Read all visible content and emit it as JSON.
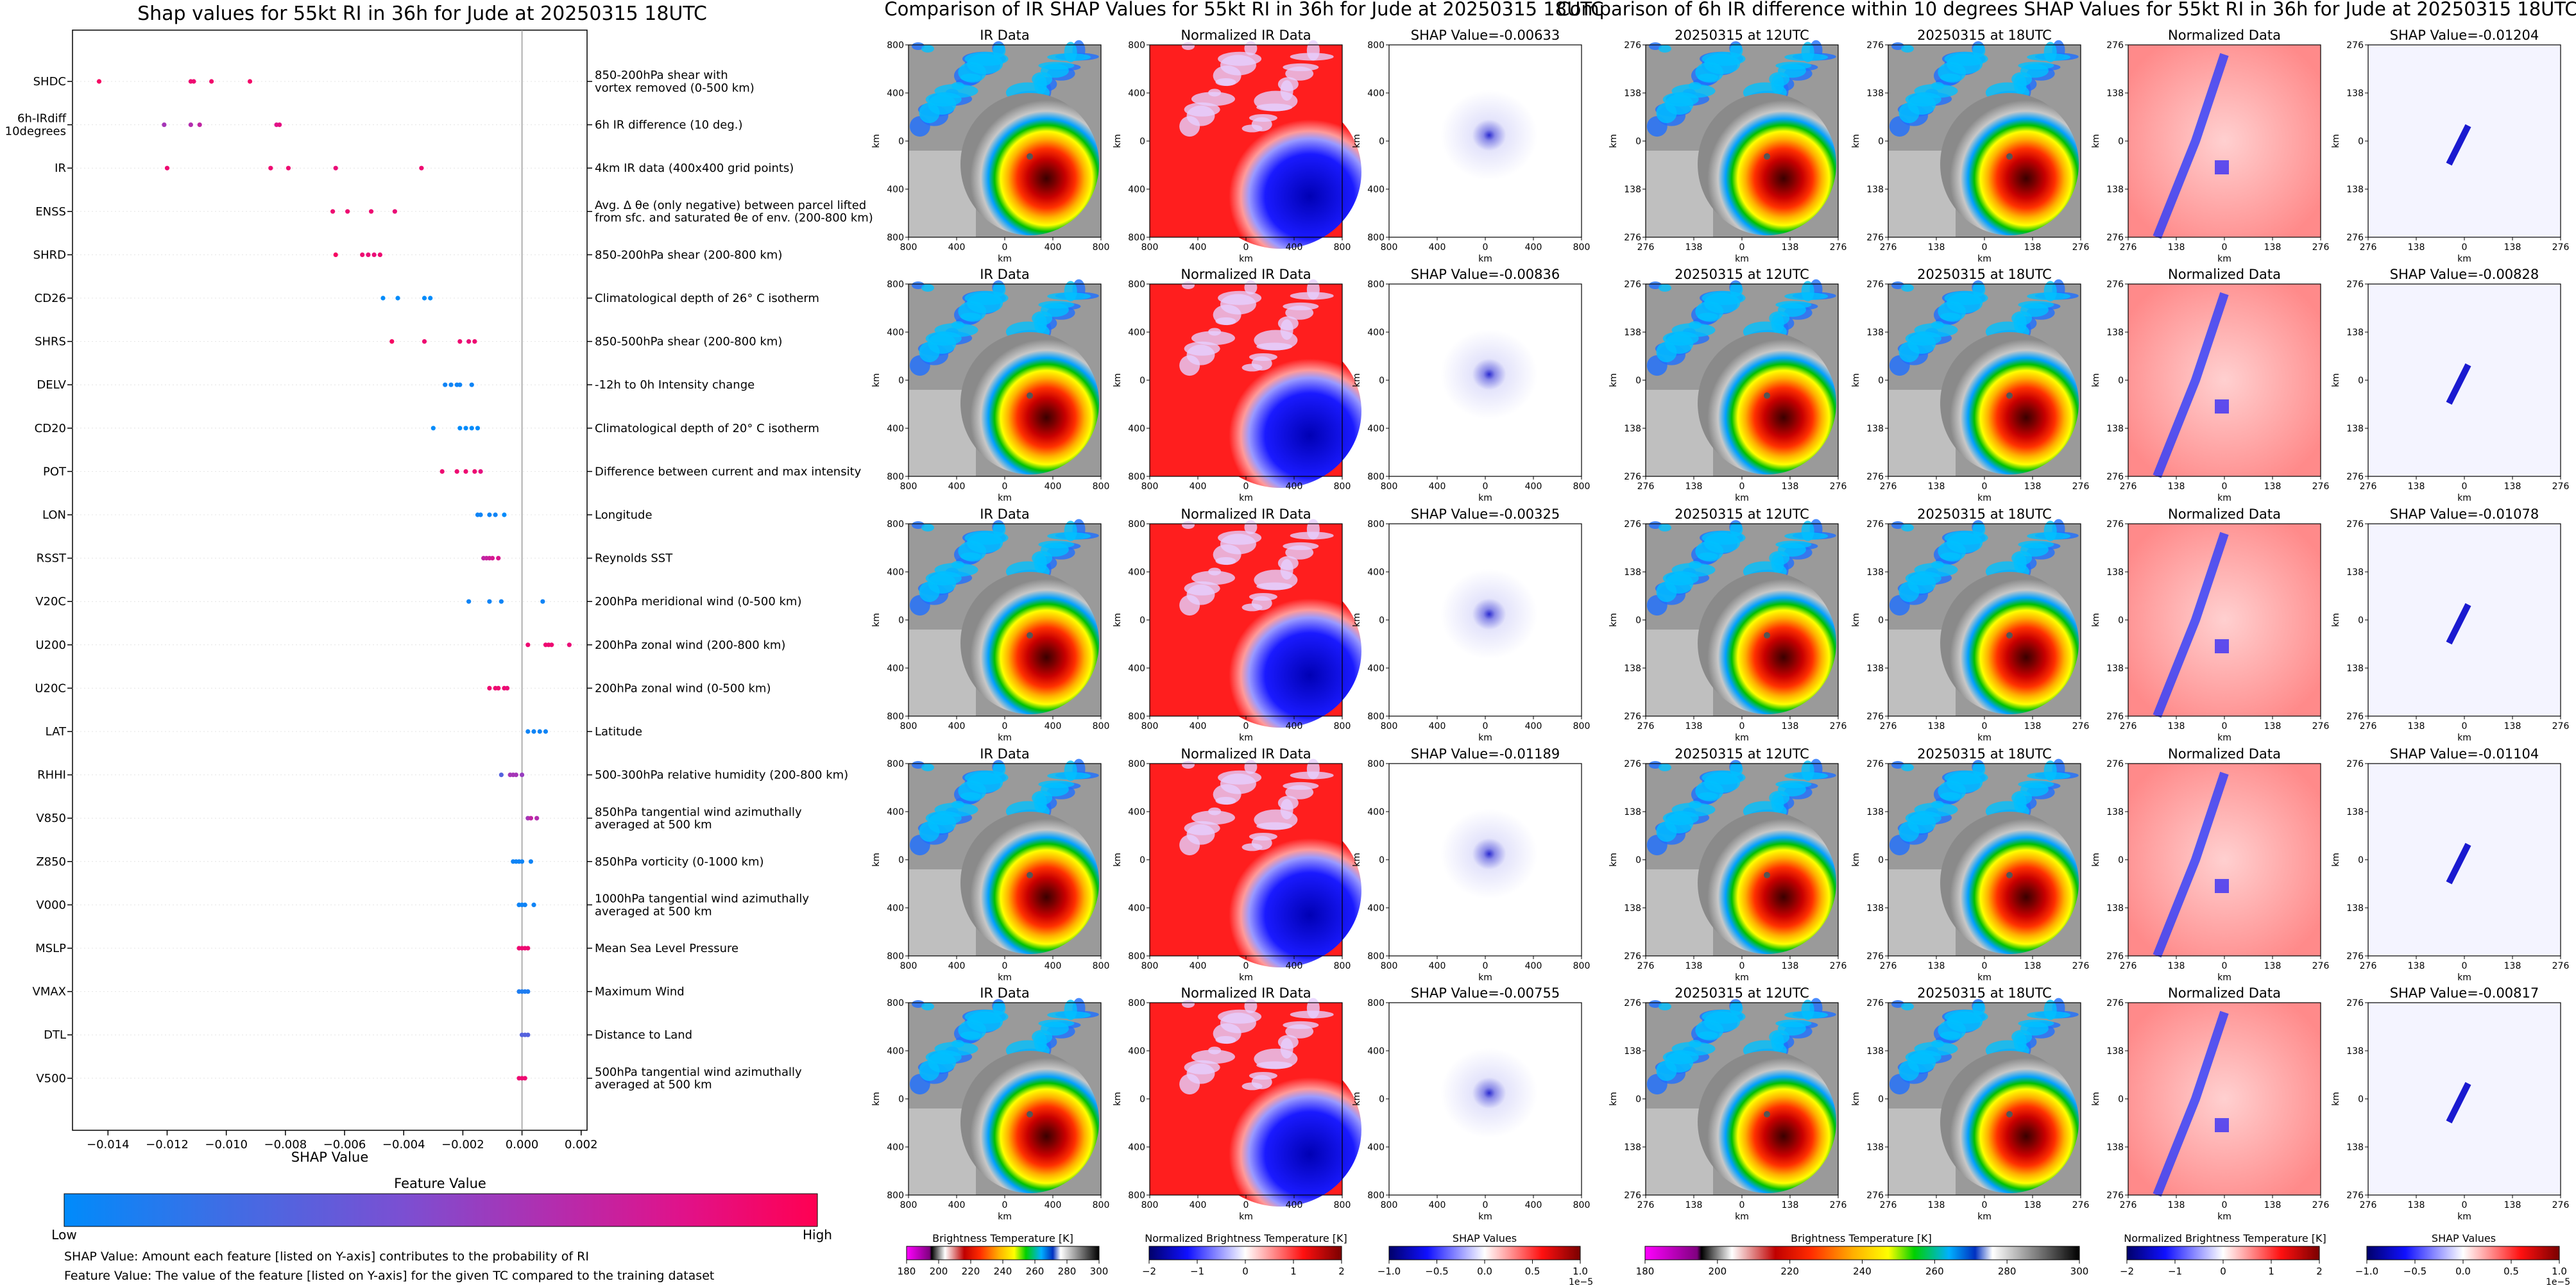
{
  "left": {
    "title": "Shap values for 55kt RI in 36h for Jude at 20250315 18UTC",
    "xlabel": "SHAP Value",
    "xticks": [
      "-0.014",
      "-0.012",
      "-0.010",
      "-0.008",
      "-0.006",
      "-0.004",
      "-0.002",
      "0.000",
      "0.002"
    ],
    "cbar_title": "Feature Value",
    "cbar_low": "Low",
    "cbar_high": "High",
    "note1": "SHAP Value: Amount each feature [listed on Y-axis] contributes to the probability of RI",
    "note2": "Feature Value: The value of the feature [listed on Y-axis] for the given TC compared to the training dataset"
  },
  "colors": {
    "low": "#1e88e5",
    "high": "#ff0052",
    "cmap": [
      "#008bfb",
      "#3b6fe6",
      "#7b4fd2",
      "#b32dae",
      "#e0128a",
      "#ff0052"
    ]
  },
  "chart_data": [
    {
      "type": "scatter",
      "title": "Shap values for 55kt RI in 36h for Jude at 20250315 18UTC",
      "xlabel": "SHAP Value",
      "xlim": [
        -0.0152,
        0.0022
      ],
      "grid": false,
      "series": [
        {
          "feature": "SHDC",
          "desc": "850-200hPa shear with\nvortex removed (0-500 km)",
          "points": [
            [
              -0.0143,
              0.95
            ],
            [
              -0.0112,
              0.9
            ],
            [
              -0.0111,
              0.9
            ],
            [
              -0.0105,
              0.92
            ],
            [
              -0.0092,
              0.93
            ]
          ]
        },
        {
          "feature": "6h-IRdiff\n10degrees",
          "desc": "6h IR difference (10 deg.)",
          "points": [
            [
              -0.0121,
              0.6
            ],
            [
              -0.0112,
              0.65
            ],
            [
              -0.0109,
              0.7
            ],
            [
              -0.0083,
              0.82
            ],
            [
              -0.0082,
              0.85
            ]
          ]
        },
        {
          "feature": "IR",
          "desc": "4km IR data (400x400 grid points)",
          "points": [
            [
              -0.012,
              0.9
            ],
            [
              -0.0085,
              0.9
            ],
            [
              -0.0079,
              0.9
            ],
            [
              -0.0063,
              0.88
            ],
            [
              -0.0034,
              0.9
            ]
          ]
        },
        {
          "feature": "ENSS",
          "desc": "Avg. Δ θe (only negative) between parcel lifted\nfrom sfc. and saturated θe of env. (200-800 km)",
          "points": [
            [
              -0.0064,
              0.9
            ],
            [
              -0.0059,
              0.9
            ],
            [
              -0.0051,
              0.9
            ],
            [
              -0.0043,
              0.88
            ]
          ]
        },
        {
          "feature": "SHRD",
          "desc": "850-200hPa shear (200-800 km)",
          "points": [
            [
              -0.0063,
              0.95
            ],
            [
              -0.0054,
              0.9
            ],
            [
              -0.0052,
              0.88
            ],
            [
              -0.005,
              0.88
            ],
            [
              -0.0048,
              0.9
            ]
          ]
        },
        {
          "feature": "CD26",
          "desc": "Climatological depth of 26° C isotherm",
          "points": [
            [
              -0.0047,
              0.0
            ],
            [
              -0.0042,
              0.0
            ],
            [
              -0.0033,
              0.0
            ],
            [
              -0.0031,
              0.0
            ]
          ]
        },
        {
          "feature": "SHRS",
          "desc": "850-500hPa shear (200-800 km)",
          "points": [
            [
              -0.0044,
              0.95
            ],
            [
              -0.0033,
              0.9
            ],
            [
              -0.0021,
              0.9
            ],
            [
              -0.0018,
              0.88
            ],
            [
              -0.0016,
              0.9
            ]
          ]
        },
        {
          "feature": "DELV",
          "desc": "-12h to 0h Intensity change",
          "points": [
            [
              -0.0026,
              0.05
            ],
            [
              -0.0024,
              0.05
            ],
            [
              -0.0022,
              0.05
            ],
            [
              -0.0021,
              0.05
            ],
            [
              -0.0017,
              0.05
            ]
          ]
        },
        {
          "feature": "CD20",
          "desc": "Climatological depth of 20° C isotherm",
          "points": [
            [
              -0.003,
              0.0
            ],
            [
              -0.0021,
              0.0
            ],
            [
              -0.0019,
              0.0
            ],
            [
              -0.0017,
              0.0
            ],
            [
              -0.0015,
              0.0
            ]
          ]
        },
        {
          "feature": "POT",
          "desc": "Difference between current and max intensity",
          "points": [
            [
              -0.0027,
              0.9
            ],
            [
              -0.0022,
              0.9
            ],
            [
              -0.0019,
              0.9
            ],
            [
              -0.0016,
              0.9
            ],
            [
              -0.0014,
              0.85
            ]
          ]
        },
        {
          "feature": "LON",
          "desc": "Longitude",
          "points": [
            [
              -0.0015,
              0.05
            ],
            [
              -0.0014,
              0.05
            ],
            [
              -0.0011,
              0.05
            ],
            [
              -0.0009,
              0.05
            ],
            [
              -0.0006,
              0.0
            ]
          ]
        },
        {
          "feature": "RSST",
          "desc": "Reynolds SST",
          "points": [
            [
              -0.0013,
              0.7
            ],
            [
              -0.0012,
              0.72
            ],
            [
              -0.0011,
              0.75
            ],
            [
              -0.001,
              0.78
            ],
            [
              -0.0008,
              0.8
            ]
          ]
        },
        {
          "feature": "V20C",
          "desc": "200hPa meridional wind (0-500 km)",
          "points": [
            [
              -0.0018,
              0.05
            ],
            [
              -0.0011,
              0.05
            ],
            [
              -0.0007,
              0.05
            ],
            [
              0.0007,
              0.05
            ]
          ]
        },
        {
          "feature": "U200",
          "desc": "200hPa zonal wind (200-800 km)",
          "points": [
            [
              0.0002,
              0.9
            ],
            [
              0.0008,
              0.9
            ],
            [
              0.0009,
              0.9
            ],
            [
              0.001,
              0.9
            ],
            [
              0.0016,
              0.88
            ]
          ]
        },
        {
          "feature": "U20C",
          "desc": "200hPa zonal wind (0-500 km)",
          "points": [
            [
              -0.0011,
              0.9
            ],
            [
              -0.0009,
              0.9
            ],
            [
              -0.0008,
              0.9
            ],
            [
              -0.0006,
              0.9
            ],
            [
              -0.0005,
              0.88
            ]
          ]
        },
        {
          "feature": "LAT",
          "desc": "Latitude",
          "points": [
            [
              0.0002,
              0.05
            ],
            [
              0.0004,
              0.05
            ],
            [
              0.0006,
              0.05
            ],
            [
              0.0008,
              0.05
            ]
          ]
        },
        {
          "feature": "RHHI",
          "desc": "500-300hPa relative humidity (200-800 km)",
          "points": [
            [
              -0.0007,
              0.3
            ],
            [
              -0.0004,
              0.6
            ],
            [
              -0.0003,
              0.6
            ],
            [
              -0.0002,
              0.6
            ],
            [
              0.0,
              0.55
            ]
          ]
        },
        {
          "feature": "V850",
          "desc": "850hPa tangential wind azimuthally\naveraged at 500 km",
          "points": [
            [
              0.0002,
              0.6
            ],
            [
              0.0003,
              0.7
            ],
            [
              0.0005,
              0.65
            ]
          ]
        },
        {
          "feature": "Z850",
          "desc": "850hPa vorticity (0-1000 km)",
          "points": [
            [
              -0.0003,
              0.05
            ],
            [
              -0.0002,
              0.05
            ],
            [
              -0.0001,
              0.05
            ],
            [
              0.0,
              0.05
            ],
            [
              0.0003,
              0.05
            ]
          ]
        },
        {
          "feature": "V000",
          "desc": "1000hPa tangential wind azimuthally\naveraged at 500 km",
          "points": [
            [
              -0.0001,
              0.05
            ],
            [
              0.0,
              0.05
            ],
            [
              0.0001,
              0.05
            ],
            [
              0.0004,
              0.05
            ]
          ]
        },
        {
          "feature": "MSLP",
          "desc": "Mean Sea Level Pressure",
          "points": [
            [
              -0.0001,
              0.9
            ],
            [
              0.0,
              0.9
            ],
            [
              0.0001,
              0.9
            ],
            [
              0.0002,
              0.9
            ]
          ]
        },
        {
          "feature": "VMAX",
          "desc": "Maximum Wind",
          "points": [
            [
              -0.0001,
              0.1
            ],
            [
              0.0,
              0.1
            ],
            [
              0.0001,
              0.1
            ],
            [
              0.0002,
              0.1
            ]
          ]
        },
        {
          "feature": "DTL",
          "desc": "Distance to Land",
          "points": [
            [
              0.0,
              0.3
            ],
            [
              0.0001,
              0.3
            ],
            [
              0.0002,
              0.3
            ]
          ]
        },
        {
          "feature": "V500",
          "desc": "500hPa tangential wind azimuthally\naveraged at 500 km",
          "points": [
            [
              -0.0001,
              0.9
            ],
            [
              0.0,
              0.9
            ],
            [
              0.0001,
              0.9
            ]
          ]
        }
      ]
    },
    {
      "type": "heatmap",
      "title": "Comparison of IR SHAP Values for 55kt RI in 36h for Jude at 20250315 18UTC",
      "columns": [
        "IR Data",
        "Normalized IR Data",
        "SHAP"
      ],
      "shap_values": [
        "-0.00633",
        "-0.00836",
        "-0.00325",
        "-0.01189",
        "-0.00755"
      ],
      "axis_unit": "km",
      "ticks_y": [
        "800",
        "400",
        "0",
        "400",
        "800"
      ],
      "ticks_x": [
        "800",
        "400",
        "0",
        "400",
        "800"
      ]
    },
    {
      "type": "heatmap",
      "title": "Comparison of 6h IR difference within 10 degrees SHAP Values for 55kt RI in 36h for Jude at 20250315 18UTC",
      "columns": [
        "20250315 at 12UTC",
        "20250315 at 18UTC",
        "Normalized Data",
        "SHAP"
      ],
      "shap_values": [
        "-0.01204",
        "-0.00828",
        "-0.01078",
        "-0.01104",
        "-0.00817"
      ],
      "axis_unit": "km",
      "ticks_y": [
        "276",
        "138",
        "0",
        "138",
        "276"
      ],
      "ticks_x": [
        "276",
        "138",
        "0",
        "138",
        "276"
      ]
    }
  ],
  "mid": {
    "title": "Comparison of IR SHAP Values for 55kt RI in 36h for Jude at 20250315 18UTC",
    "col1": "IR Data",
    "col2": "Normalized IR Data",
    "shap_prefix": "SHAP Value="
  },
  "right": {
    "title": "Comparison of 6h IR difference within 10 degrees SHAP Values for 55kt RI in 36h for Jude at 20250315 18UTC",
    "col1": "20250315 at 12UTC",
    "col2": "20250315 at 18UTC",
    "col3": "Normalized Data",
    "shap_prefix": "SHAP Value="
  },
  "cbars": {
    "bt_label": "Brightness Temperature [K]",
    "bt_ticks": [
      "180",
      "200",
      "220",
      "240",
      "260",
      "280",
      "300"
    ],
    "bt_ticks_wide": [
      "180",
      "200",
      "220",
      "240",
      "260",
      "280",
      "300"
    ],
    "norm_label": "Normalized Brightness Temperature [K]",
    "norm_ticks": [
      "−2",
      "−1",
      "0",
      "1",
      "2"
    ],
    "shap_label": "SHAP Values",
    "shap_ticks": [
      "−1.0",
      "−0.5",
      "0.0",
      "0.5",
      "1.0"
    ],
    "shap_exp": "1e−5"
  }
}
